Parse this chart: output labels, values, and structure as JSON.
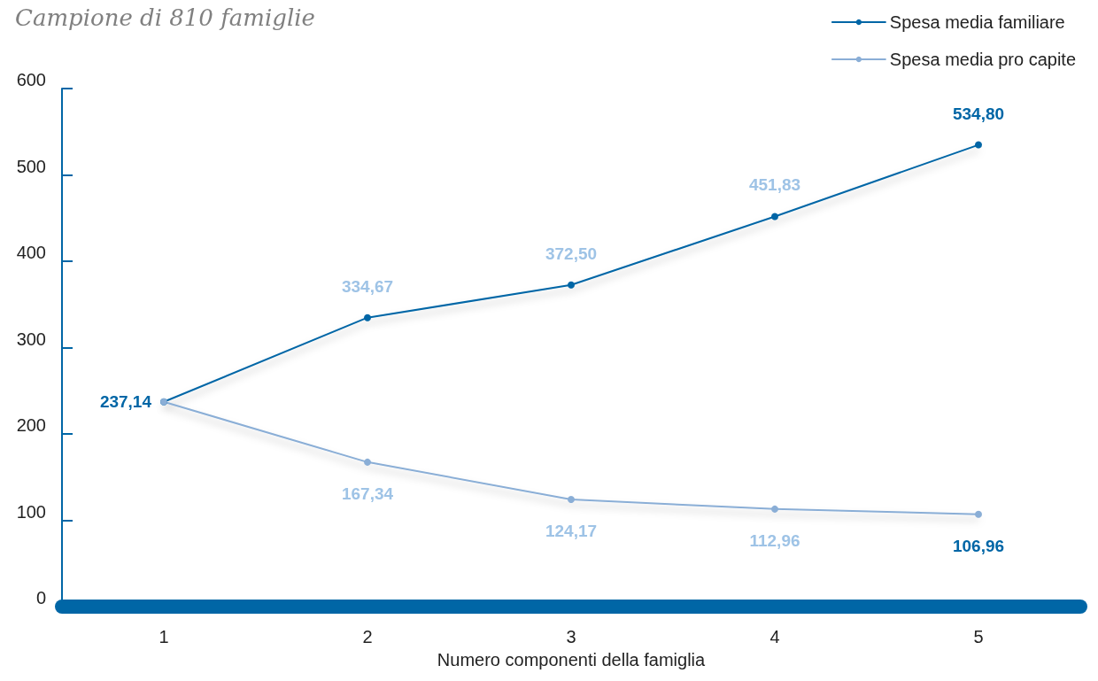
{
  "chart_data": {
    "type": "line",
    "title": "Campione di 810 famiglie",
    "xlabel": "Numero componenti della famiglia",
    "categories": [
      "1",
      "2",
      "3",
      "4",
      "5"
    ],
    "series": [
      {
        "name": "Spesa media familiare",
        "color": "#0066a6",
        "values": [
          237.14,
          334.67,
          372.5,
          451.83,
          534.8
        ],
        "value_labels": [
          "237,14",
          "334,67",
          "372,50",
          "451,83",
          "534,80"
        ]
      },
      {
        "name": "Spesa media pro capite",
        "color": "#8aaed6",
        "values": [
          237.14,
          167.34,
          124.17,
          112.96,
          106.96
        ],
        "value_labels": [
          null,
          "167,34",
          "124,17",
          "112,96",
          "106,96"
        ]
      }
    ],
    "ylim": [
      0,
      600
    ],
    "yticks": [
      0,
      100,
      200,
      300,
      400,
      500,
      600
    ],
    "grid": false,
    "legend": "top right",
    "marker": "circle",
    "line_style": "solid"
  }
}
